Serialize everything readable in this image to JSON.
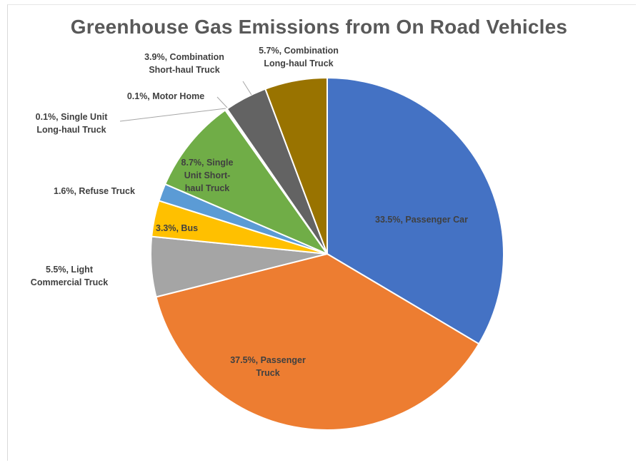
{
  "chart_data": {
    "type": "pie",
    "title": "Greenhouse Gas Emissions from On Road Vehicles",
    "slices": [
      {
        "label": "Passenger Car",
        "value": 33.5,
        "text": "33.5%, Passenger Car",
        "color": "#4472c4"
      },
      {
        "label": "Passenger Truck",
        "value": 37.5,
        "text": "37.5%, Passenger Truck",
        "color": "#ed7d31"
      },
      {
        "label": "Light Commercial Truck",
        "value": 5.5,
        "text": "5.5%, Light Commercial Truck",
        "color": "#a5a5a5"
      },
      {
        "label": "Bus",
        "value": 3.3,
        "text": "3.3%, Bus",
        "color": "#ffc000"
      },
      {
        "label": "Refuse Truck",
        "value": 1.6,
        "text": "1.6%, Refuse Truck",
        "color": "#5b9bd5"
      },
      {
        "label": "Single Unit Short-haul Truck",
        "value": 8.7,
        "text": "8.7%, Single Unit Short-haul Truck",
        "color": "#70ad47"
      },
      {
        "label": "Single Unit Long-haul Truck",
        "value": 0.1,
        "text": "0.1%, Single Unit Long-haul Truck",
        "color": "#264478"
      },
      {
        "label": "Motor Home",
        "value": 0.1,
        "text": "0.1%, Motor Home",
        "color": "#9e480e"
      },
      {
        "label": "Combination Short-haul Truck",
        "value": 3.9,
        "text": "3.9%, Combination Short-haul Truck",
        "color": "#636363"
      },
      {
        "label": "Combination Long-haul Truck",
        "value": 5.7,
        "text": "5.7%, Combination Long-haul Truck",
        "color": "#997300"
      }
    ]
  }
}
